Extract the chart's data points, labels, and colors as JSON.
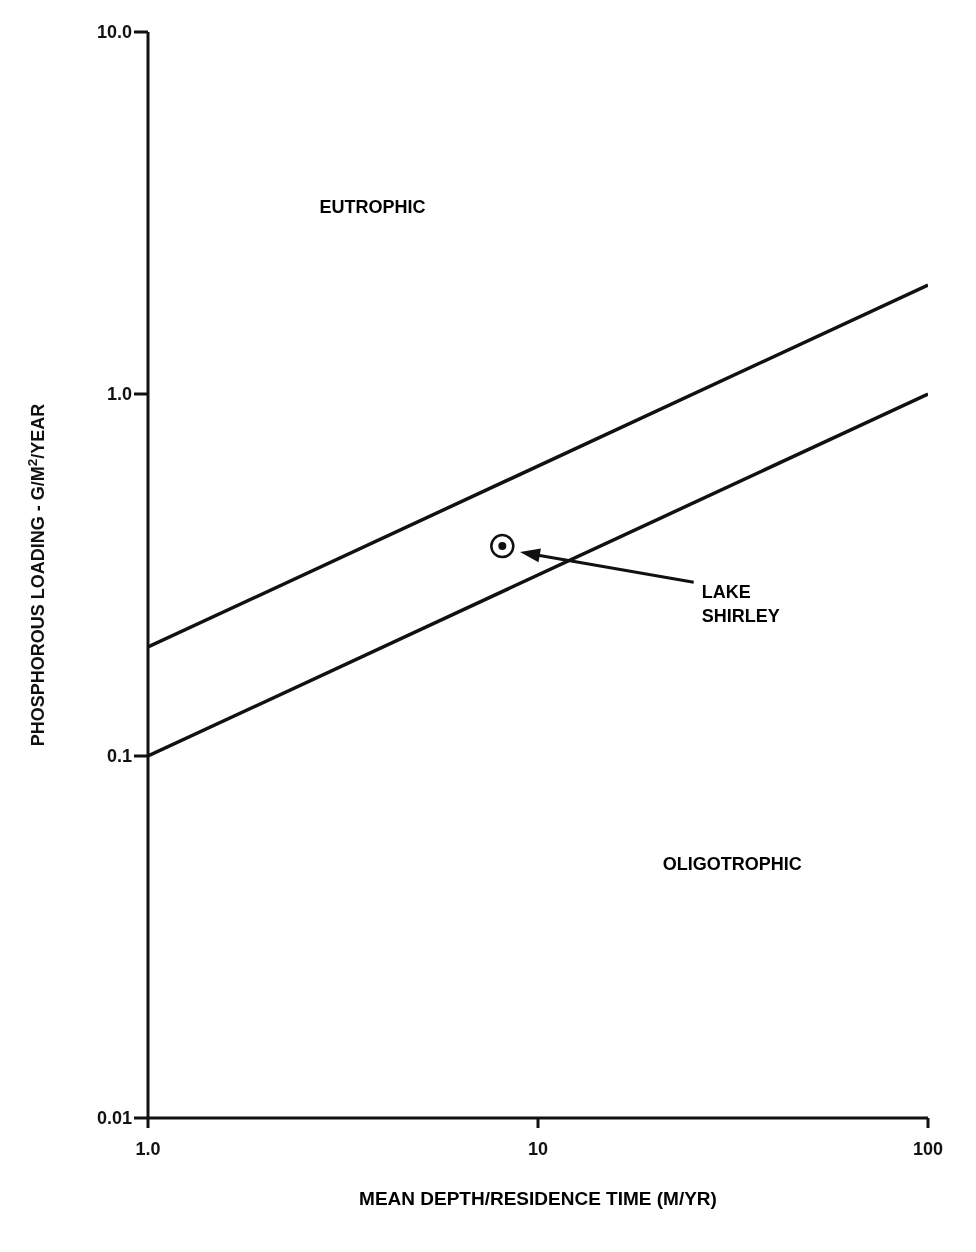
{
  "chart_data": {
    "type": "line",
    "xlabel": "MEAN DEPTH/RESIDENCE TIME (M/YR)",
    "ylabel": "PHOSPHOROUS LOADING - G/M$^{2}$/YEAR",
    "log": "xy",
    "line_style": "solid",
    "marker": "none",
    "xlim": [
      1,
      100
    ],
    "xticks": [
      {
        "value": 1,
        "label": "1.0"
      },
      10,
      100
    ],
    "ylim": [
      0.01,
      10
    ],
    "yticks": [
      {
        "value": 0.01,
        "label": "0.01"
      },
      {
        "value": 0.1,
        "label": "0.1"
      },
      {
        "value": 1,
        "label": "1.0"
      },
      {
        "value": 10,
        "label": "10.0"
      }
    ],
    "series": [
      {
        "color": "#111111",
        "x": [
          1,
          100
        ],
        "values": [
          0.2,
          2.0
        ]
      },
      {
        "color": "#111111",
        "x": [
          1,
          100
        ],
        "values": [
          0.1,
          1.0
        ]
      },
      {
        "type": "scatter",
        "color": "#111111",
        "marker": "circle",
        "x": [
          8.1
        ],
        "values": [
          0.38
        ]
      }
    ],
    "annotations": [
      "EUTROPHIC",
      "OLIGOTROPHIC",
      "LAKE SHIRLEY"
    ]
  }
}
